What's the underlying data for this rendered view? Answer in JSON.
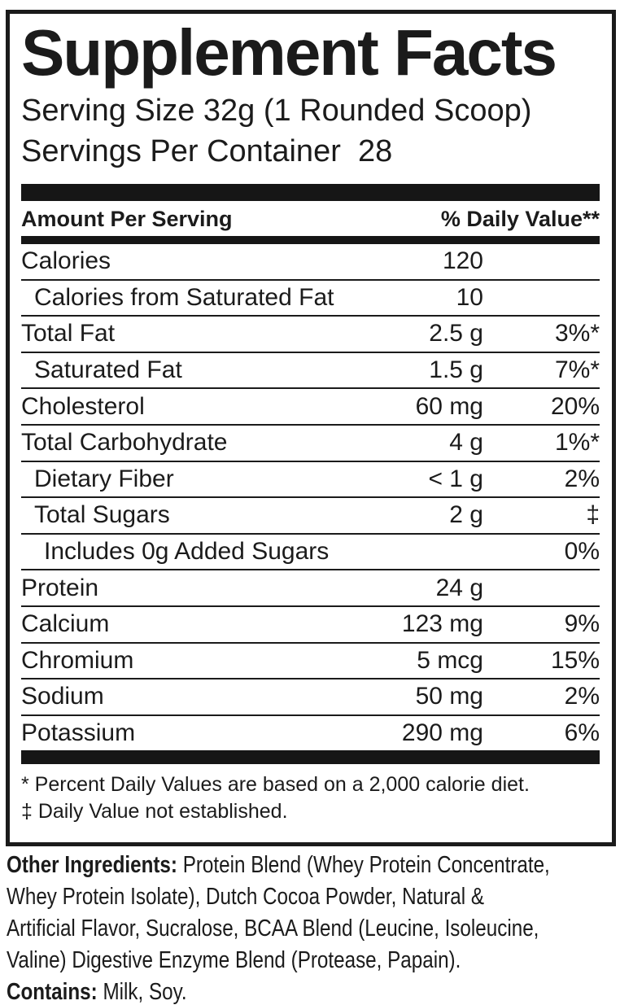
{
  "colors": {
    "ink": "#1b1b1b",
    "background": "#ffffff"
  },
  "title": "Supplement Facts",
  "serving": {
    "size_line": "Serving Size 32g (1 Rounded Scoop)",
    "per_container_line": "Servings Per Container  28"
  },
  "table": {
    "header_left": "Amount Per Serving",
    "header_right": "% Daily Value**",
    "rows": [
      {
        "name": "Calories",
        "amount": "120",
        "dv": "",
        "indent": 0
      },
      {
        "name": "Calories from Saturated Fat",
        "amount": "10",
        "dv": "",
        "indent": 1
      },
      {
        "name": "Total Fat",
        "amount": "2.5 g",
        "dv": "3%*",
        "indent": 0
      },
      {
        "name": "Saturated Fat",
        "amount": "1.5 g",
        "dv": "7%*",
        "indent": 1
      },
      {
        "name": "Cholesterol",
        "amount": "60 mg",
        "dv": "20%",
        "indent": 0
      },
      {
        "name": "Total Carbohydrate",
        "amount": "4 g",
        "dv": "1%*",
        "indent": 0
      },
      {
        "name": "Dietary Fiber",
        "amount": "< 1 g",
        "dv": "2%",
        "indent": 1
      },
      {
        "name": "Total Sugars",
        "amount": "2 g",
        "dv": "‡",
        "indent": 1
      },
      {
        "name": "Includes 0g Added Sugars",
        "amount": "",
        "dv": "0%",
        "indent": 2
      },
      {
        "name": "Protein",
        "amount": "24 g",
        "dv": "",
        "indent": 0
      },
      {
        "name": "Calcium",
        "amount": "123 mg",
        "dv": "9%",
        "indent": 0
      },
      {
        "name": "Chromium",
        "amount": "5 mcg",
        "dv": "15%",
        "indent": 0
      },
      {
        "name": "Sodium",
        "amount": "50 mg",
        "dv": "2%",
        "indent": 0
      },
      {
        "name": "Potassium",
        "amount": "290 mg",
        "dv": "6%",
        "indent": 0
      }
    ]
  },
  "footnotes": [
    "* Percent Daily Values are based on a 2,000 calorie diet.",
    "‡ Daily Value not established."
  ],
  "other_ingredients": {
    "label": "Other Ingredients:",
    "line1_rest": " Protein Blend (Whey Protein Concentrate,",
    "line2": "Whey Protein Isolate), Dutch Cocoa Powder, Natural &",
    "line3": "Artificial Flavor, Sucralose, BCAA Blend (Leucine, Isoleucine,",
    "line4": "Valine) Digestive Enzyme Blend (Protease, Papain)."
  },
  "contains": {
    "label": "Contains:",
    "text": " Milk, Soy."
  }
}
